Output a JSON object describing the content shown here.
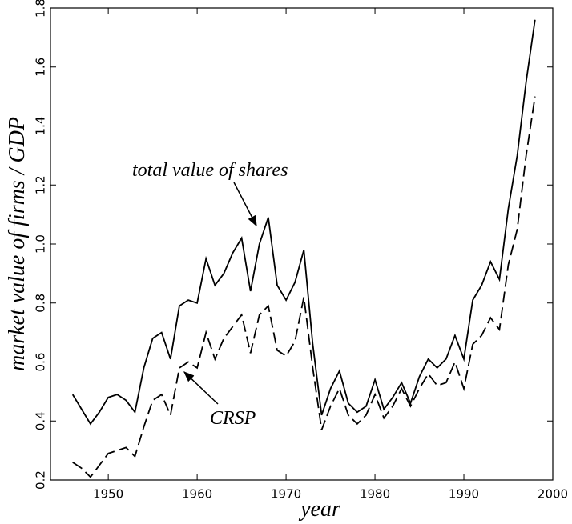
{
  "chart_data": {
    "type": "line",
    "ylabel": "market value of firms / GDP",
    "xlabel": "year",
    "x": [
      1946,
      1947,
      1948,
      1949,
      1950,
      1951,
      1952,
      1953,
      1954,
      1955,
      1956,
      1957,
      1958,
      1959,
      1960,
      1961,
      1962,
      1963,
      1964,
      1965,
      1966,
      1967,
      1968,
      1969,
      1970,
      1971,
      1972,
      1973,
      1974,
      1975,
      1976,
      1977,
      1978,
      1979,
      1980,
      1981,
      1982,
      1983,
      1984,
      1985,
      1986,
      1987,
      1988,
      1989,
      1990,
      1991,
      1992,
      1993,
      1994,
      1995,
      1996,
      1997,
      1998
    ],
    "series": [
      {
        "name": "total value of shares",
        "color": "#000000",
        "style": "solid",
        "values": [
          0.49,
          0.44,
          0.39,
          0.43,
          0.48,
          0.49,
          0.47,
          0.43,
          0.58,
          0.68,
          0.7,
          0.61,
          0.79,
          0.81,
          0.8,
          0.95,
          0.86,
          0.9,
          0.97,
          1.02,
          0.84,
          1.0,
          1.09,
          0.86,
          0.81,
          0.87,
          0.98,
          0.66,
          0.42,
          0.51,
          0.57,
          0.46,
          0.43,
          0.45,
          0.54,
          0.44,
          0.48,
          0.53,
          0.46,
          0.55,
          0.61,
          0.58,
          0.61,
          0.69,
          0.61,
          0.81,
          0.86,
          0.94,
          0.88,
          1.12,
          1.3,
          1.55,
          1.76
        ]
      },
      {
        "name": "CRSP",
        "color": "#000000",
        "style": "dashed",
        "values": [
          0.26,
          0.24,
          0.21,
          0.25,
          0.29,
          0.3,
          0.31,
          0.28,
          0.38,
          0.47,
          0.49,
          0.42,
          0.58,
          0.6,
          0.58,
          0.7,
          0.61,
          0.68,
          0.72,
          0.76,
          0.63,
          0.76,
          0.79,
          0.64,
          0.62,
          0.67,
          0.82,
          0.58,
          0.37,
          0.45,
          0.51,
          0.42,
          0.39,
          0.42,
          0.49,
          0.41,
          0.45,
          0.51,
          0.45,
          0.51,
          0.56,
          0.52,
          0.53,
          0.6,
          0.51,
          0.66,
          0.69,
          0.75,
          0.71,
          0.93,
          1.05,
          1.3,
          1.5
        ]
      }
    ],
    "xlim": [
      1943.5,
      2000
    ],
    "xticks": [
      1950,
      1960,
      1970,
      1980,
      1990,
      2000
    ],
    "ylim": [
      0.2,
      1.8
    ],
    "yticks": [
      0.2,
      0.4,
      0.6,
      0.8,
      {
        "value": 1,
        "label": "1.0"
      },
      1.2,
      1.4,
      1.6,
      1.8
    ],
    "grid": false
  }
}
